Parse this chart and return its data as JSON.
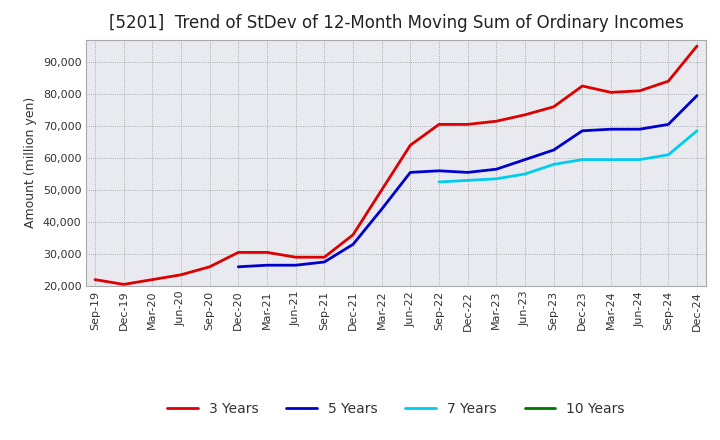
{
  "title": "[5201]  Trend of StDev of 12-Month Moving Sum of Ordinary Incomes",
  "ylabel": "Amount (million yen)",
  "background_color": "#ffffff",
  "plot_bg_color": "#e8eaf0",
  "grid_color": "#aaaaaa",
  "x_labels": [
    "Sep-19",
    "Dec-19",
    "Mar-20",
    "Jun-20",
    "Sep-20",
    "Dec-20",
    "Mar-21",
    "Jun-21",
    "Sep-21",
    "Dec-21",
    "Mar-22",
    "Jun-22",
    "Sep-22",
    "Dec-22",
    "Mar-23",
    "Jun-23",
    "Sep-23",
    "Dec-23",
    "Mar-24",
    "Jun-24",
    "Sep-24",
    "Dec-24"
  ],
  "series": {
    "3 Years": {
      "color": "#dd0000",
      "data": [
        22000,
        20500,
        22000,
        23500,
        26000,
        30500,
        30500,
        29000,
        29000,
        36000,
        50000,
        64000,
        70500,
        70500,
        71500,
        73500,
        76000,
        82500,
        80500,
        81000,
        84000,
        95000
      ]
    },
    "5 Years": {
      "color": "#0000cc",
      "data": [
        null,
        null,
        null,
        null,
        null,
        26000,
        26500,
        26500,
        27500,
        33000,
        44000,
        55500,
        56000,
        55500,
        56500,
        59500,
        62500,
        68500,
        69000,
        69000,
        70500,
        79500
      ]
    },
    "7 Years": {
      "color": "#00ccee",
      "data": [
        null,
        null,
        null,
        null,
        null,
        null,
        null,
        null,
        null,
        null,
        null,
        null,
        52500,
        53000,
        53500,
        55000,
        58000,
        59500,
        59500,
        59500,
        61000,
        68500
      ]
    },
    "10 Years": {
      "color": "#007700",
      "data": [
        null,
        null,
        null,
        null,
        null,
        null,
        null,
        null,
        null,
        null,
        null,
        null,
        null,
        null,
        null,
        null,
        null,
        null,
        null,
        null,
        null,
        null
      ]
    }
  },
  "ylim": [
    20000,
    97000
  ],
  "yticks": [
    20000,
    30000,
    40000,
    50000,
    60000,
    70000,
    80000,
    90000
  ],
  "title_fontsize": 12,
  "axis_fontsize": 9,
  "tick_fontsize": 8,
  "line_width": 2.0
}
